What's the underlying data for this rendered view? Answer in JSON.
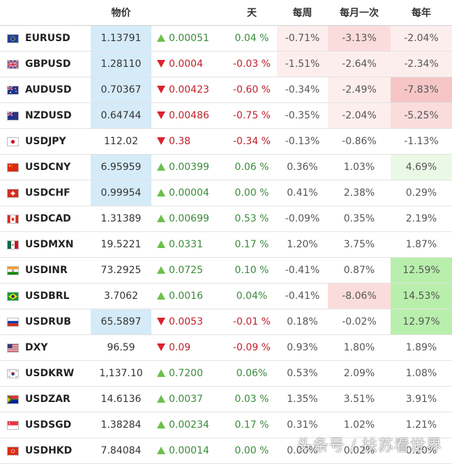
{
  "header": {
    "price": "物价",
    "day": "天",
    "week": "每周",
    "month": "每月一次",
    "year": "每年"
  },
  "colors": {
    "price_highlight": "#d5ebf8",
    "red_light": "#fdeeee",
    "red_medium": "#fbdcdc",
    "red_strong": "#f6c6c6",
    "green_light": "#eaf8e6",
    "green_medium": "#d6f4cf",
    "green_strong": "#b9efac",
    "up_arrow": "#6cc04a",
    "down_arrow": "#d9232d"
  },
  "rows": [
    {
      "flag": "eu-flag-icon",
      "symbol": "EURUSD",
      "price": "1.13791",
      "price_hl": true,
      "dir": "up",
      "change": "0.00051",
      "day": "0.04 %",
      "week": "-0.71%",
      "week_bg": "red_light",
      "month": "-3.13%",
      "month_bg": "red_medium",
      "year": "-2.04%",
      "year_bg": "red_light"
    },
    {
      "flag": "uk-flag-icon",
      "symbol": "GBPUSD",
      "price": "1.28110",
      "price_hl": true,
      "dir": "down",
      "change": "0.0004",
      "day": "-0.03 %",
      "week": "-1.51%",
      "week_bg": "red_light",
      "month": "-2.64%",
      "month_bg": "red_light",
      "year": "-2.34%",
      "year_bg": "red_light"
    },
    {
      "flag": "au-flag-icon",
      "symbol": "AUDUSD",
      "price": "0.70367",
      "price_hl": true,
      "dir": "down",
      "change": "0.00423",
      "day": "-0.60 %",
      "week": "-0.34%",
      "week_bg": "",
      "month": "-2.49%",
      "month_bg": "red_light",
      "year": "-7.83%",
      "year_bg": "red_strong"
    },
    {
      "flag": "nz-flag-icon",
      "symbol": "NZDUSD",
      "price": "0.64744",
      "price_hl": true,
      "dir": "down",
      "change": "0.00486",
      "day": "-0.75 %",
      "week": "-0.35%",
      "week_bg": "",
      "month": "-2.04%",
      "month_bg": "red_light",
      "year": "-5.25%",
      "year_bg": "red_medium"
    },
    {
      "flag": "jp-flag-icon",
      "symbol": "USDJPY",
      "price": "112.02",
      "price_hl": false,
      "dir": "down",
      "change": "0.38",
      "day": "-0.34 %",
      "week": "-0.13%",
      "week_bg": "",
      "month": "-0.86%",
      "month_bg": "",
      "year": "-1.13%",
      "year_bg": ""
    },
    {
      "flag": "cn-flag-icon",
      "symbol": "USDCNY",
      "price": "6.95959",
      "price_hl": true,
      "dir": "up",
      "change": "0.00399",
      "day": "0.06 %",
      "week": "0.36%",
      "week_bg": "",
      "month": "1.03%",
      "month_bg": "",
      "year": "4.69%",
      "year_bg": "green_light"
    },
    {
      "flag": "ch-flag-icon",
      "symbol": "USDCHF",
      "price": "0.99954",
      "price_hl": true,
      "dir": "up",
      "change": "0.00004",
      "day": "0.00 %",
      "week": "0.41%",
      "week_bg": "",
      "month": "2.38%",
      "month_bg": "",
      "year": "0.29%",
      "year_bg": ""
    },
    {
      "flag": "ca-flag-icon",
      "symbol": "USDCAD",
      "price": "1.31389",
      "price_hl": false,
      "dir": "up",
      "change": "0.00699",
      "day": "0.53 %",
      "week": "-0.09%",
      "week_bg": "",
      "month": "0.35%",
      "month_bg": "",
      "year": "2.19%",
      "year_bg": ""
    },
    {
      "flag": "mx-flag-icon",
      "symbol": "USDMXN",
      "price": "19.5221",
      "price_hl": false,
      "dir": "up",
      "change": "0.0331",
      "day": "0.17 %",
      "week": "1.20%",
      "week_bg": "",
      "month": "3.75%",
      "month_bg": "",
      "year": "1.87%",
      "year_bg": ""
    },
    {
      "flag": "in-flag-icon",
      "symbol": "USDINR",
      "price": "73.2925",
      "price_hl": false,
      "dir": "up",
      "change": "0.0725",
      "day": "0.10 %",
      "week": "-0.41%",
      "week_bg": "",
      "month": "0.87%",
      "month_bg": "",
      "year": "12.59%",
      "year_bg": "green_strong"
    },
    {
      "flag": "br-flag-icon",
      "symbol": "USDBRL",
      "price": "3.7062",
      "price_hl": false,
      "dir": "up",
      "change": "0.0016",
      "day": "0.04%",
      "week": "-0.41%",
      "week_bg": "",
      "month": "-8.06%",
      "month_bg": "red_medium",
      "year": "14.53%",
      "year_bg": "green_strong"
    },
    {
      "flag": "ru-flag-icon",
      "symbol": "USDRUB",
      "price": "65.5897",
      "price_hl": true,
      "dir": "down",
      "change": "0.0053",
      "day": "-0.01 %",
      "week": "0.18%",
      "week_bg": "",
      "month": "-0.02%",
      "month_bg": "",
      "year": "12.97%",
      "year_bg": "green_strong"
    },
    {
      "flag": "us-flag-icon",
      "symbol": "DXY",
      "price": "96.59",
      "price_hl": false,
      "dir": "down",
      "change": "0.09",
      "day": "-0.09 %",
      "week": "0.93%",
      "week_bg": "",
      "month": "1.80%",
      "month_bg": "",
      "year": "1.89%",
      "year_bg": ""
    },
    {
      "flag": "kr-flag-icon",
      "symbol": "USDKRW",
      "price": "1,137.10",
      "price_hl": false,
      "dir": "up",
      "change": "0.7200",
      "day": "0.06%",
      "week": "0.53%",
      "week_bg": "",
      "month": "2.09%",
      "month_bg": "",
      "year": "1.08%",
      "year_bg": ""
    },
    {
      "flag": "za-flag-icon",
      "symbol": "USDZAR",
      "price": "14.6136",
      "price_hl": false,
      "dir": "up",
      "change": "0.0037",
      "day": "0.03 %",
      "week": "1.35%",
      "week_bg": "",
      "month": "3.51%",
      "month_bg": "",
      "year": "3.91%",
      "year_bg": ""
    },
    {
      "flag": "sg-flag-icon",
      "symbol": "USDSGD",
      "price": "1.38284",
      "price_hl": false,
      "dir": "up",
      "change": "0.00234",
      "day": "0.17 %",
      "week": "0.31%",
      "week_bg": "",
      "month": "1.02%",
      "month_bg": "",
      "year": "1.21%",
      "year_bg": ""
    },
    {
      "flag": "hk-flag-icon",
      "symbol": "USDHKD",
      "price": "7.84084",
      "price_hl": false,
      "dir": "up",
      "change": "0.00014",
      "day": "0.00 %",
      "week": "0.00%",
      "week_bg": "",
      "month": "0.02%",
      "month_bg": "",
      "year": "0.20%",
      "year_bg": ""
    }
  ],
  "watermark": "头条号 / 扶苏看世界"
}
